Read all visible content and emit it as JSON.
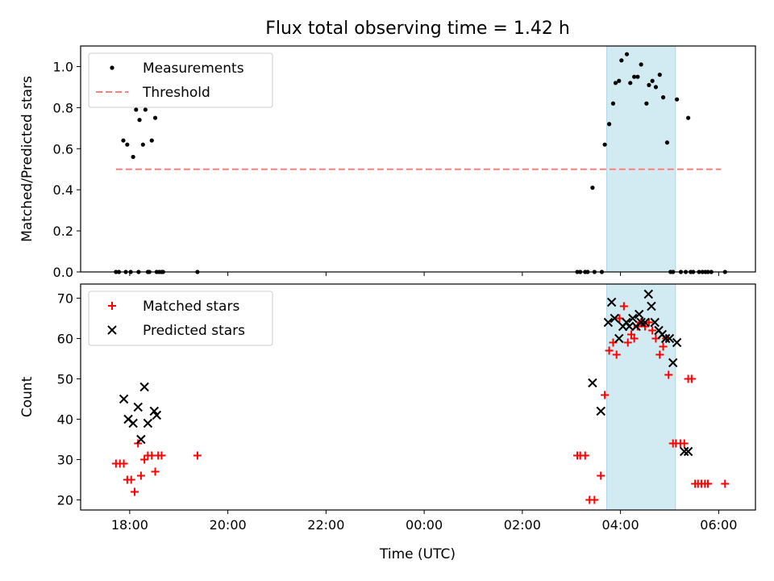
{
  "chart_data": {
    "title": "Flux total observing time = 1.42 h",
    "xlabel": "Time (UTC)",
    "x_unit": "hours since 00:00 UTC (negative = previous evening)",
    "xlim": [
      -7.0,
      6.75
    ],
    "x_ticks": [
      -6,
      -4,
      -2,
      0,
      2,
      4,
      6
    ],
    "x_tick_labels": [
      "18:00",
      "20:00",
      "22:00",
      "00:00",
      "02:00",
      "04:00",
      "06:00"
    ],
    "highlight_span": [
      3.72,
      5.12
    ],
    "highlight_color": "#add8e6",
    "panels": [
      {
        "type": "scatter",
        "ylabel": "Matched/Predicted stars",
        "ylim": [
          0,
          1.1
        ],
        "y_ticks": [
          0.0,
          0.2,
          0.4,
          0.6,
          0.8,
          1.0
        ],
        "y_tick_labels": [
          "0.0",
          "0.2",
          "0.4",
          "0.6",
          "0.8",
          "1.0"
        ],
        "legend": {
          "position": "top-left",
          "measurements_label": "Measurements",
          "threshold_label": "Threshold"
        },
        "series": [
          {
            "name": "Measurements",
            "marker": "dot",
            "color": "#000000",
            "x": [
              -6.28,
              -6.22,
              -6.13,
              -6.08,
              -6.05,
              -5.98,
              -5.93,
              -5.87,
              -5.82,
              -5.8,
              -5.73,
              -5.68,
              -5.63,
              -5.6,
              -5.55,
              -5.48,
              -5.45,
              -5.4,
              -5.35,
              -5.32,
              -4.62,
              3.12,
              3.18,
              3.28,
              3.33,
              3.43,
              3.47,
              3.62,
              3.68,
              3.77,
              3.85,
              3.9,
              3.97,
              4.02,
              4.13,
              4.2,
              4.28,
              4.35,
              4.42,
              4.53,
              4.58,
              4.65,
              4.72,
              4.8,
              4.87,
              4.95,
              5.02,
              5.07,
              5.15,
              5.23,
              5.33,
              5.38,
              5.43,
              5.48,
              5.6,
              5.67,
              5.73,
              5.78,
              5.85,
              6.13
            ],
            "y": [
              0.0,
              0.0,
              0.64,
              0.0,
              0.62,
              0.0,
              0.56,
              0.79,
              0.0,
              0.74,
              0.62,
              0.79,
              0.0,
              0.0,
              0.64,
              0.75,
              0.0,
              0.0,
              0.0,
              0.0,
              0.0,
              0.0,
              0.0,
              0.0,
              0.0,
              0.41,
              0.0,
              0.0,
              0.62,
              0.72,
              0.82,
              0.92,
              0.93,
              1.03,
              1.06,
              0.92,
              0.95,
              0.95,
              1.01,
              0.82,
              0.91,
              0.93,
              0.9,
              0.96,
              0.85,
              0.63,
              0.0,
              0.0,
              0.84,
              0.0,
              0.0,
              0.75,
              0.0,
              0.0,
              0.0,
              0.0,
              0.0,
              0.0,
              0.0,
              0.0
            ]
          },
          {
            "name": "Threshold",
            "style": "dashed",
            "color": "#ff7f7f",
            "x": [
              -6.28,
              6.05
            ],
            "y": [
              0.5,
              0.5
            ]
          }
        ]
      },
      {
        "type": "scatter",
        "ylabel": "Count",
        "ylim": [
          17.5,
          73.5
        ],
        "y_ticks": [
          20,
          30,
          40,
          50,
          60,
          70
        ],
        "y_tick_labels": [
          "20",
          "30",
          "40",
          "50",
          "60",
          "70"
        ],
        "legend": {
          "position": "top-left",
          "matched_label": "Matched stars",
          "predicted_label": "Predicted stars"
        },
        "series": [
          {
            "name": "Matched stars",
            "marker": "plus",
            "color": "#ff0000",
            "x": [
              -6.28,
              -6.2,
              -6.12,
              -6.05,
              -5.97,
              -5.9,
              -5.83,
              -5.77,
              -5.7,
              -5.63,
              -5.55,
              -5.48,
              -5.42,
              -5.35,
              -4.62,
              3.12,
              3.18,
              3.28,
              3.37,
              3.47,
              3.6,
              3.68,
              3.77,
              3.85,
              3.92,
              3.98,
              4.07,
              4.15,
              4.22,
              4.28,
              4.35,
              4.42,
              4.5,
              4.58,
              4.65,
              4.72,
              4.8,
              4.87,
              4.93,
              4.98,
              5.07,
              5.13,
              5.22,
              5.3,
              5.38,
              5.45,
              5.52,
              5.58,
              5.65,
              5.72,
              5.78,
              6.13
            ],
            "y": [
              29,
              29,
              29,
              25,
              25,
              22,
              34,
              26,
              30,
              31,
              31,
              27,
              31,
              31,
              31,
              31,
              31,
              31,
              20,
              20,
              26,
              46,
              57,
              59,
              56,
              65,
              68,
              59,
              61,
              60,
              63,
              64,
              63,
              64,
              62,
              60,
              56,
              58,
              60,
              51,
              34,
              34,
              34,
              34,
              50,
              50,
              24,
              24,
              24,
              24,
              24,
              24
            ]
          },
          {
            "name": "Predicted stars",
            "marker": "x",
            "color": "#000000",
            "x": [
              -6.12,
              -6.03,
              -5.93,
              -5.83,
              -5.77,
              -5.7,
              -5.63,
              -5.5,
              -5.45,
              3.43,
              3.6,
              3.75,
              3.82,
              3.88,
              3.97,
              4.05,
              4.12,
              4.18,
              4.25,
              4.32,
              4.38,
              4.42,
              4.5,
              4.57,
              4.63,
              4.7,
              4.78,
              4.85,
              4.92,
              5.0,
              5.07,
              5.15,
              5.3,
              5.38
            ],
            "y": [
              45,
              40,
              39,
              43,
              35,
              48,
              39,
              42,
              41,
              49,
              42,
              64,
              69,
              65,
              60,
              63,
              64,
              63,
              65,
              63,
              66,
              64,
              64,
              71,
              68,
              64,
              62,
              61,
              60,
              60,
              54,
              59,
              32,
              32
            ]
          }
        ]
      }
    ]
  }
}
